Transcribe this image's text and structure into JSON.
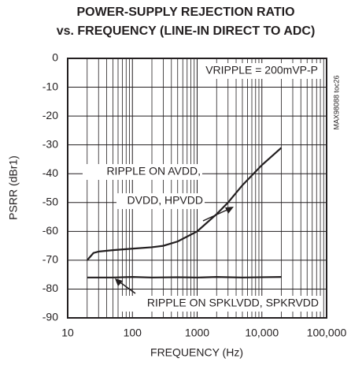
{
  "chart_data": {
    "type": "line",
    "title": "POWER-SUPPLY REJECTION RATIO",
    "subtitle": "vs. FREQUENCY (LINE-IN DIRECT TO ADC)",
    "x_label": "FREQUENCY (Hz)",
    "y_label": "PSRR (dBr1)",
    "annotations": [
      "VRIPPLE = 200mVP-P",
      "MAX98088 toc26",
      "RIPPLE ON AVDD,",
      "DVDD, HPVDD",
      "RIPPLE ON SPKLVDD, SPKRVDD"
    ],
    "x_log": true,
    "grid": true,
    "xlim": [
      10,
      100000
    ],
    "xticks": [
      10,
      100,
      1000,
      {
        "value": 10000,
        "label": "10,000"
      },
      {
        "value": 100000,
        "label": "100,000"
      }
    ],
    "ylim": [
      -90,
      0
    ],
    "yticks": [
      0,
      -10,
      -20,
      -30,
      -40,
      -50,
      -60,
      -70,
      -80,
      -90
    ],
    "series": [
      {
        "name": "RIPPLE ON AVDD, DVDD, HPVDD",
        "color": "#231f20",
        "x": [
          20,
          25,
          30,
          50,
          100,
          200,
          300,
          500,
          1000,
          2000,
          3000,
          5000,
          10000,
          20000
        ],
        "values": [
          -70,
          -67.5,
          -67,
          -66.5,
          -66,
          -65.5,
          -65,
          -63.5,
          -60,
          -54,
          -50,
          -44,
          -37,
          -31
        ]
      },
      {
        "name": "RIPPLE ON SPKLVDD, SPKRVDD",
        "color": "#231f20",
        "x": [
          20,
          50,
          100,
          200,
          500,
          1000,
          2000,
          5000,
          10000,
          20000
        ],
        "values": [
          -76,
          -76,
          -75.8,
          -76,
          -75.9,
          -76,
          -75.8,
          -76,
          -75.9,
          -75.8
        ]
      }
    ]
  }
}
